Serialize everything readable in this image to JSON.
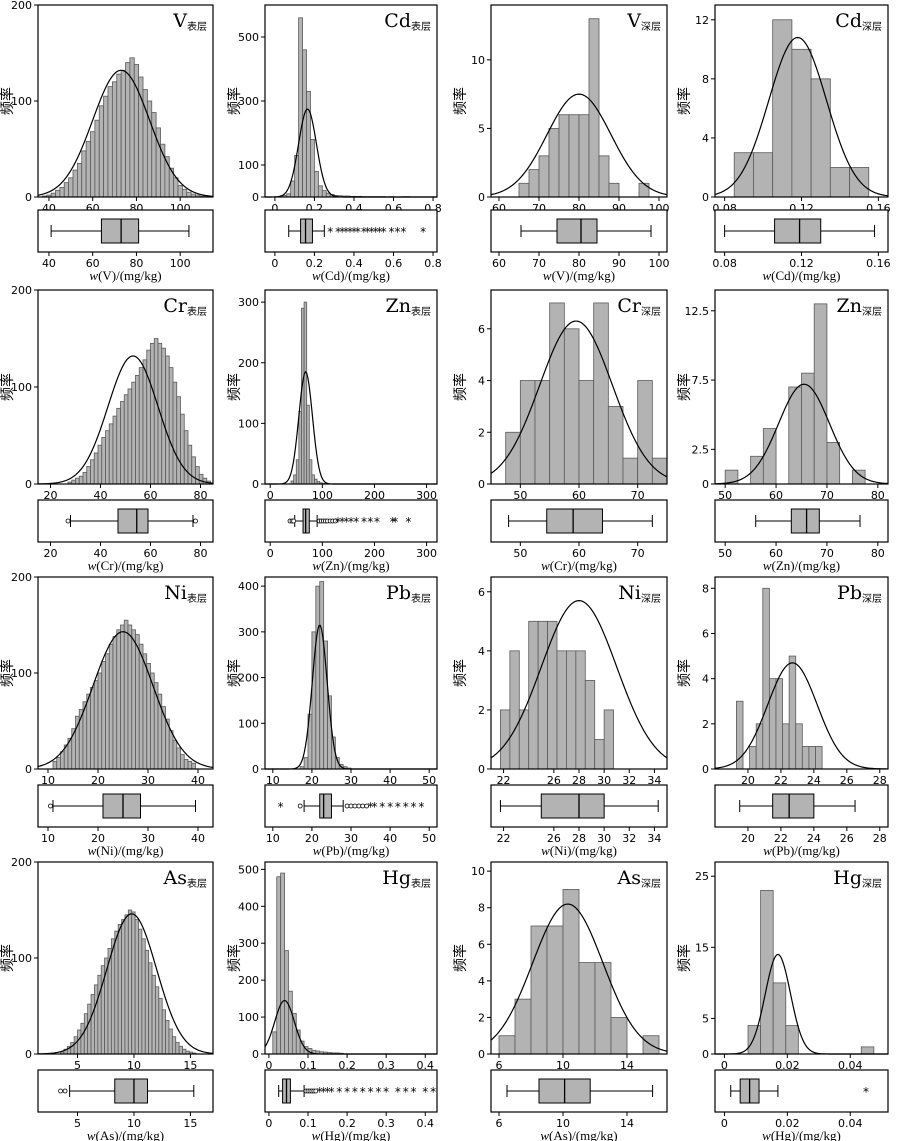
{
  "figure": {
    "ylabel": "频率"
  },
  "chart_data": [
    {
      "type": "bar",
      "title": "V",
      "subscript": "表层",
      "xlabel_var": "w",
      "xlabel_rest": "(V)/(mg/kg)",
      "xlim": [
        35,
        115
      ],
      "ylim": [
        0,
        200
      ],
      "yticks": [
        0,
        100,
        200
      ],
      "xticks": [
        40,
        60,
        80,
        100
      ],
      "box_xticks": [
        40,
        60,
        80,
        100
      ],
      "bins": {
        "start": 37,
        "width": 2,
        "values": [
          1,
          2,
          4,
          7,
          10,
          15,
          20,
          28,
          35,
          48,
          58,
          68,
          80,
          95,
          105,
          115,
          120,
          128,
          132,
          140,
          145,
          138,
          125,
          112,
          100,
          88,
          72,
          55,
          42,
          30,
          20,
          12,
          8,
          5,
          3,
          2,
          1,
          1
        ]
      },
      "normal": {
        "mean": 73,
        "sd": 13,
        "peak": 132
      },
      "box": {
        "whisker_low": 41,
        "q1": 64,
        "median": 73,
        "q3": 81,
        "whisker_high": 104,
        "outliers": [],
        "extremes": []
      }
    },
    {
      "type": "bar",
      "title": "Cd",
      "subscript": "表层",
      "xlabel_var": "w",
      "xlabel_rest": "(Cd)/(mg/kg)",
      "xlim": [
        -0.05,
        0.82
      ],
      "ylim": [
        0,
        600
      ],
      "yticks": [
        0,
        100,
        300,
        500
      ],
      "xticks": [
        0,
        0.2,
        0.4,
        0.6,
        0.8
      ],
      "box_xticks": [
        0,
        0.2,
        0.4,
        0.6,
        0.8
      ],
      "bins": {
        "start": 0.04,
        "width": 0.02,
        "values": [
          5,
          10,
          50,
          130,
          560,
          460,
          330,
          180,
          80,
          35,
          20,
          12,
          8,
          5,
          4,
          3,
          3,
          2,
          2,
          2,
          1,
          1,
          1,
          1,
          1,
          1,
          0,
          1,
          0,
          0,
          1,
          1
        ]
      },
      "normal": {
        "mean": 0.165,
        "sd": 0.045,
        "peak": 275
      },
      "box": {
        "whisker_low": 0.07,
        "q1": 0.13,
        "median": 0.155,
        "q3": 0.19,
        "whisker_high": 0.25,
        "outliers": [],
        "extremes": [
          0.28,
          0.32,
          0.34,
          0.36,
          0.38,
          0.4,
          0.42,
          0.45,
          0.47,
          0.49,
          0.51,
          0.53,
          0.55,
          0.59,
          0.62,
          0.65,
          0.75
        ]
      }
    },
    {
      "type": "bar",
      "title": "V",
      "subscript": "深层",
      "xlabel_var": "w",
      "xlabel_rest": "(V)/(mg/kg)",
      "xlim": [
        58,
        102
      ],
      "ylim": [
        0,
        14
      ],
      "yticks": [
        0,
        5,
        10
      ],
      "xticks": [
        60,
        70,
        80,
        90,
        100
      ],
      "box_xticks": [
        60,
        70,
        80,
        90,
        100
      ],
      "bins": {
        "start": 65,
        "width": 2.5,
        "values": [
          1,
          2,
          3,
          5,
          6,
          6,
          6,
          13,
          3,
          1,
          0,
          0,
          1
        ]
      },
      "normal": {
        "mean": 80,
        "sd": 8,
        "peak": 7.5
      },
      "box": {
        "whisker_low": 65.5,
        "q1": 74.5,
        "median": 80.5,
        "q3": 84.5,
        "whisker_high": 98,
        "outliers": [],
        "extremes": []
      }
    },
    {
      "type": "bar",
      "title": "Cd",
      "subscript": "深层",
      "xlabel_var": "w",
      "xlabel_rest": "(Cd)/(mg/kg)",
      "xlim": [
        0.075,
        0.165
      ],
      "ylim": [
        0,
        13
      ],
      "yticks": [
        0,
        4,
        8,
        12
      ],
      "xticks": [
        0.08,
        0.12,
        0.16
      ],
      "box_xticks": [
        0.08,
        0.12,
        0.16
      ],
      "bins": {
        "start": 0.085,
        "width": 0.01,
        "values": [
          3,
          3,
          12,
          10,
          8,
          2,
          2
        ]
      },
      "normal": {
        "mean": 0.118,
        "sd": 0.015,
        "peak": 10.8
      },
      "box": {
        "whisker_low": 0.08,
        "q1": 0.106,
        "median": 0.119,
        "q3": 0.13,
        "whisker_high": 0.158,
        "outliers": [],
        "extremes": []
      }
    },
    {
      "type": "bar",
      "title": "Cr",
      "subscript": "表层",
      "xlabel_var": "w",
      "xlabel_rest": "(Cr)/(mg/kg)",
      "xlim": [
        15,
        85
      ],
      "ylim": [
        0,
        200
      ],
      "yticks": [
        0,
        100,
        200
      ],
      "xticks": [
        20,
        40,
        60,
        80
      ],
      "box_xticks": [
        20,
        40,
        60,
        80
      ],
      "bins": {
        "start": 27,
        "width": 1.5,
        "values": [
          2,
          4,
          6,
          8,
          12,
          18,
          25,
          32,
          40,
          48,
          55,
          62,
          70,
          78,
          85,
          92,
          98,
          105,
          112,
          120,
          128,
          138,
          145,
          150,
          145,
          140,
          132,
          120,
          105,
          90,
          72,
          55,
          40,
          28,
          18,
          10,
          6,
          3
        ]
      },
      "normal": {
        "mean": 53,
        "sd": 10,
        "peak": 132
      },
      "box": {
        "whisker_low": 28,
        "q1": 47,
        "median": 54.5,
        "q3": 59,
        "whisker_high": 77,
        "outliers": [
          27,
          78
        ],
        "extremes": []
      }
    },
    {
      "type": "bar",
      "title": "Zn",
      "subscript": "表层",
      "xlabel_var": "w",
      "xlabel_rest": "(Zn)/(mg/kg)",
      "xlim": [
        -10,
        320
      ],
      "ylim": [
        0,
        320
      ],
      "yticks": [
        0,
        100,
        200,
        300
      ],
      "xticks": [
        0,
        100,
        200,
        300
      ],
      "box_xticks": [
        0,
        100,
        200,
        300
      ],
      "bins": {
        "start": 40,
        "width": 5,
        "values": [
          5,
          15,
          40,
          120,
          290,
          300,
          130,
          40,
          15,
          8,
          4,
          2,
          1,
          1
        ]
      },
      "normal": {
        "mean": 68,
        "sd": 13,
        "peak": 185
      },
      "box": {
        "whisker_low": 47,
        "q1": 63,
        "median": 68,
        "q3": 75,
        "whisker_high": 90,
        "outliers": [
          38,
          42,
          45,
          94,
          98,
          102,
          106,
          110,
          115,
          120,
          125
        ],
        "extremes": [
          130,
          138,
          146,
          155,
          165,
          180,
          192,
          205,
          235,
          240,
          265
        ]
      }
    },
    {
      "type": "bar",
      "title": "Cr",
      "subscript": "深层",
      "xlabel_var": "w",
      "xlabel_rest": "(Cr)/(mg/kg)",
      "xlim": [
        45,
        75
      ],
      "ylim": [
        0,
        7.5
      ],
      "yticks": [
        0,
        2,
        4,
        6
      ],
      "xticks": [
        50,
        60,
        70
      ],
      "box_xticks": [
        50,
        60,
        70
      ],
      "bins": {
        "start": 47.5,
        "width": 2.5,
        "values": [
          2,
          4,
          4,
          7,
          6,
          4,
          7,
          3,
          1,
          4,
          1
        ]
      },
      "normal": {
        "mean": 59.5,
        "sd": 6.2,
        "peak": 6.3
      },
      "box": {
        "whisker_low": 48,
        "q1": 54.5,
        "median": 59,
        "q3": 64,
        "whisker_high": 72.5,
        "outliers": [],
        "extremes": []
      }
    },
    {
      "type": "bar",
      "title": "Zn",
      "subscript": "深层",
      "xlabel_var": "w",
      "xlabel_rest": "(Zn)/(mg/kg)",
      "xlim": [
        48,
        82
      ],
      "ylim": [
        0,
        14
      ],
      "yticks": [
        0,
        2.5,
        7.5,
        12.5
      ],
      "xticks": [
        50,
        60,
        70,
        80
      ],
      "box_xticks": [
        50,
        60,
        70,
        80
      ],
      "bins": {
        "start": 50,
        "width": 2.5,
        "values": [
          1,
          0,
          2,
          4,
          0,
          7,
          8,
          13,
          3,
          0,
          1
        ]
      },
      "normal": {
        "mean": 65.5,
        "sd": 5,
        "peak": 7.2
      },
      "box": {
        "whisker_low": 56,
        "q1": 63,
        "median": 66,
        "q3": 68.5,
        "whisker_high": 76.5,
        "outliers": [],
        "extremes": []
      }
    },
    {
      "type": "bar",
      "title": "Ni",
      "subscript": "表层",
      "xlabel_var": "w",
      "xlabel_rest": "(Ni)/(mg/kg)",
      "xlim": [
        8,
        43
      ],
      "ylim": [
        0,
        200
      ],
      "yticks": [
        0,
        100,
        200
      ],
      "xticks": [
        10,
        20,
        30,
        40
      ],
      "box_xticks": [
        10,
        20,
        30,
        40
      ],
      "bins": {
        "start": 11,
        "width": 0.75,
        "values": [
          8,
          12,
          18,
          25,
          32,
          42,
          55,
          62,
          70,
          78,
          85,
          92,
          100,
          112,
          120,
          130,
          138,
          145,
          150,
          155,
          150,
          145,
          140,
          130,
          120,
          110,
          100,
          90,
          78,
          65,
          52,
          40,
          30,
          22,
          15,
          10,
          8,
          6
        ]
      },
      "normal": {
        "mean": 25,
        "sd": 6,
        "peak": 143
      },
      "box": {
        "whisker_low": 11,
        "q1": 21,
        "median": 25,
        "q3": 28.5,
        "whisker_high": 39.5,
        "outliers": [
          10.5
        ],
        "extremes": []
      }
    },
    {
      "type": "bar",
      "title": "Pb",
      "subscript": "表层",
      "xlabel_var": "w",
      "xlabel_rest": "(Pb)/(mg/kg)",
      "xlim": [
        8,
        52
      ],
      "ylim": [
        0,
        420
      ],
      "yticks": [
        0,
        100,
        200,
        300,
        400
      ],
      "xticks": [
        10,
        20,
        30,
        40,
        50
      ],
      "box_xticks": [
        10,
        20,
        30,
        40,
        50
      ],
      "bins": {
        "start": 17,
        "width": 1,
        "values": [
          5,
          25,
          120,
          300,
          400,
          410,
          280,
          160,
          70,
          25,
          10,
          5,
          2
        ]
      },
      "normal": {
        "mean": 22,
        "sd": 1.9,
        "peak": 315
      },
      "box": {
        "whisker_low": 18,
        "q1": 22,
        "median": 23,
        "q3": 25,
        "whisker_high": 28,
        "outliers": [
          17,
          29,
          30,
          31,
          32,
          33,
          34
        ],
        "extremes": [
          12,
          35,
          36,
          38,
          40,
          42,
          44,
          46,
          48
        ]
      }
    },
    {
      "type": "bar",
      "title": "Ni",
      "subscript": "深层",
      "xlabel_var": "w",
      "xlabel_rest": "(Ni)/(mg/kg)",
      "xlim": [
        21,
        35
      ],
      "ylim": [
        0,
        6.5
      ],
      "yticks": [
        0,
        2,
        4,
        6
      ],
      "xticks": [
        22,
        26,
        28,
        30,
        32,
        34
      ],
      "box_xticks": [
        22,
        26,
        28,
        30,
        32,
        34
      ],
      "bins": {
        "start": 21.75,
        "width": 0.75,
        "values": [
          2,
          4,
          2,
          5,
          5,
          5,
          4,
          4,
          4,
          3,
          1,
          2
        ]
      },
      "normal": {
        "mean": 28,
        "sd": 3,
        "peak": 5.7
      },
      "box": {
        "whisker_low": 21.75,
        "q1": 25,
        "median": 28,
        "q3": 30,
        "whisker_high": 34.3,
        "outliers": [],
        "extremes": []
      }
    },
    {
      "type": "bar",
      "title": "Pb",
      "subscript": "深层",
      "xlabel_var": "w",
      "xlabel_rest": "(Pb)/(mg/kg)",
      "xlim": [
        18,
        28.5
      ],
      "ylim": [
        0,
        8.5
      ],
      "yticks": [
        0,
        2,
        4,
        6,
        8
      ],
      "xticks": [
        20,
        22,
        24,
        26,
        28
      ],
      "box_xticks": [
        20,
        22,
        24,
        26,
        28
      ],
      "bins": {
        "start": 19.3,
        "width": 0.4,
        "values": [
          3,
          0,
          1,
          2,
          8,
          4,
          4,
          2,
          5,
          2,
          1,
          1,
          1
        ]
      },
      "normal": {
        "mean": 22.7,
        "sd": 1.5,
        "peak": 4.7
      },
      "box": {
        "whisker_low": 19.5,
        "q1": 21.5,
        "median": 22.5,
        "q3": 24,
        "whisker_high": 26.5,
        "outliers": [],
        "extremes": []
      }
    },
    {
      "type": "bar",
      "title": "As",
      "subscript": "表层",
      "xlabel_var": "w",
      "xlabel_rest": "(As)/(mg/kg)",
      "xlim": [
        1.5,
        17
      ],
      "ylim": [
        0,
        200
      ],
      "yticks": [
        0,
        100,
        200
      ],
      "xticks": [
        5,
        10,
        15
      ],
      "box_xticks": [
        5,
        10,
        15
      ],
      "bins": {
        "start": 3.5,
        "width": 0.3,
        "values": [
          2,
          5,
          8,
          12,
          18,
          25,
          32,
          42,
          52,
          62,
          72,
          82,
          92,
          100,
          110,
          120,
          128,
          135,
          140,
          145,
          150,
          148,
          140,
          130,
          120,
          108,
          95,
          82,
          70,
          58,
          46,
          35,
          26,
          18,
          12,
          8,
          5,
          3,
          2,
          1
        ]
      },
      "normal": {
        "mean": 9.8,
        "sd": 2.2,
        "peak": 146
      },
      "box": {
        "whisker_low": 4.3,
        "q1": 8.3,
        "median": 10,
        "q3": 11.2,
        "whisker_high": 15.3,
        "outliers": [
          3.5,
          3.9
        ],
        "extremes": []
      }
    },
    {
      "type": "bar",
      "title": "Hg",
      "subscript": "表层",
      "xlabel_var": "w",
      "xlabel_rest": "(Hg)/(mg/kg)",
      "xlim": [
        -0.01,
        0.43
      ],
      "ylim": [
        0,
        520
      ],
      "yticks": [
        0,
        100,
        200,
        300,
        400,
        500
      ],
      "xticks": [
        0,
        0.1,
        0.2,
        0.3,
        0.4
      ],
      "box_xticks": [
        0,
        0.1,
        0.2,
        0.3,
        0.4
      ],
      "bins": {
        "start": 0.01,
        "width": 0.01,
        "values": [
          60,
          480,
          490,
          280,
          170,
          110,
          65,
          35,
          20,
          15,
          10,
          8,
          6,
          5,
          4,
          3,
          3,
          2
        ]
      },
      "normal": {
        "mean": 0.04,
        "sd": 0.025,
        "peak": 145
      },
      "box": {
        "whisker_low": 0.025,
        "q1": 0.035,
        "median": 0.045,
        "q3": 0.055,
        "whisker_high": 0.09,
        "outliers": [
          0.095,
          0.1,
          0.105,
          0.11,
          0.115,
          0.12
        ],
        "extremes": [
          0.13,
          0.14,
          0.15,
          0.16,
          0.18,
          0.2,
          0.22,
          0.24,
          0.26,
          0.28,
          0.3,
          0.33,
          0.35,
          0.37,
          0.4,
          0.42
        ]
      }
    },
    {
      "type": "bar",
      "title": "As",
      "subscript": "深层",
      "xlabel_var": "w",
      "xlabel_rest": "(As)/(mg/kg)",
      "xlim": [
        5.5,
        16.5
      ],
      "ylim": [
        0,
        10.5
      ],
      "yticks": [
        0,
        2,
        4,
        6,
        8,
        10
      ],
      "xticks": [
        6,
        10,
        14
      ],
      "box_xticks": [
        6,
        10,
        14
      ],
      "bins": {
        "start": 6,
        "width": 1,
        "values": [
          1,
          3,
          7,
          7,
          9,
          5,
          5,
          2,
          0,
          1
        ]
      },
      "normal": {
        "mean": 10.3,
        "sd": 2.2,
        "peak": 8.2
      },
      "box": {
        "whisker_low": 6.5,
        "q1": 8.5,
        "median": 10.1,
        "q3": 11.7,
        "whisker_high": 15.6,
        "outliers": [],
        "extremes": []
      }
    },
    {
      "type": "bar",
      "title": "Hg",
      "subscript": "深层",
      "xlabel_var": "w",
      "xlabel_rest": "(Hg)/(mg/kg)",
      "xlim": [
        -0.003,
        0.052
      ],
      "ylim": [
        0,
        27
      ],
      "yticks": [
        0,
        5,
        15,
        25
      ],
      "xticks": [
        0,
        0.02,
        0.04
      ],
      "box_xticks": [
        0,
        0.02,
        0.04
      ],
      "bins": {
        "start": 0.0075,
        "width": 0.004,
        "values": [
          4,
          23,
          10,
          4,
          0,
          0,
          0,
          0,
          0,
          1
        ]
      },
      "normal": {
        "mean": 0.017,
        "sd": 0.004,
        "peak": 14
      },
      "box": {
        "whisker_low": 0.002,
        "q1": 0.005,
        "median": 0.008,
        "q3": 0.011,
        "whisker_high": 0.017,
        "outliers": [],
        "extremes": [
          0.045
        ]
      }
    }
  ]
}
